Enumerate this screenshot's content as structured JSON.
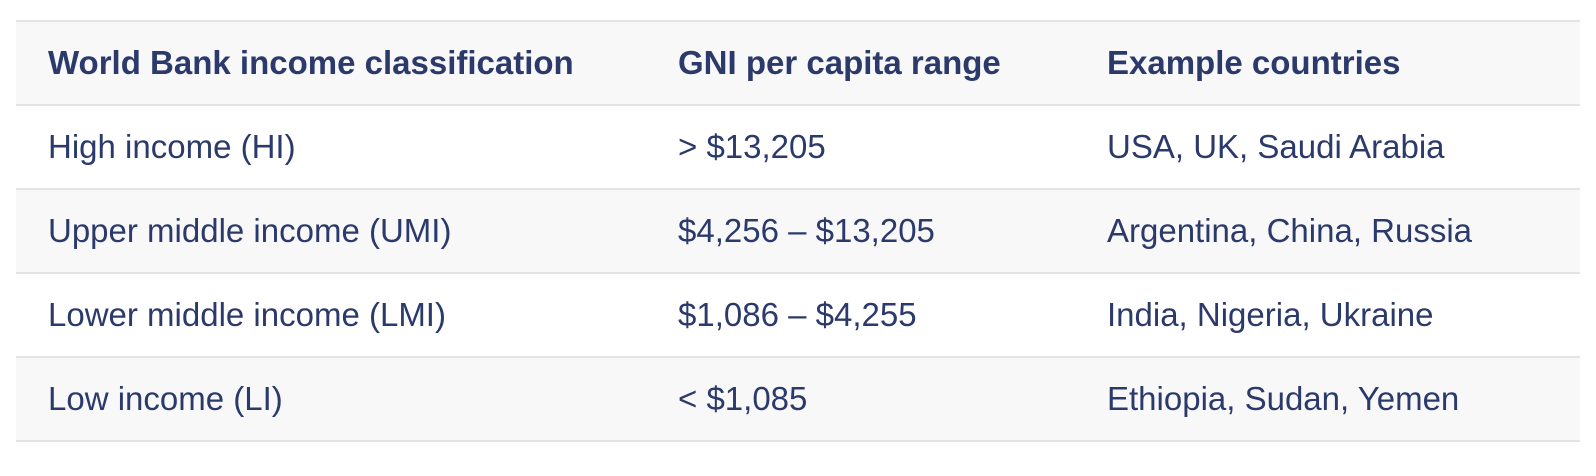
{
  "table": {
    "headers": [
      "World Bank income classification",
      "GNI per capita range",
      "Example countries"
    ],
    "rows": [
      [
        "High income (HI)",
        "> $13,205",
        "USA, UK, Saudi Arabia"
      ],
      [
        "Upper middle income (UMI)",
        "$4,256 – $13,205",
        "Argentina, China, Russia"
      ],
      [
        "Lower middle income (LMI)",
        "$1,086 – $4,255",
        "India, Nigeria, Ukraine"
      ],
      [
        "Low income (LI)",
        "< $1,085",
        "Ethiopia, Sudan, Yemen"
      ]
    ]
  },
  "colors": {
    "text": "#2b3a6b",
    "stripe": "#f8f8f8",
    "border": "#e4e4e4"
  }
}
